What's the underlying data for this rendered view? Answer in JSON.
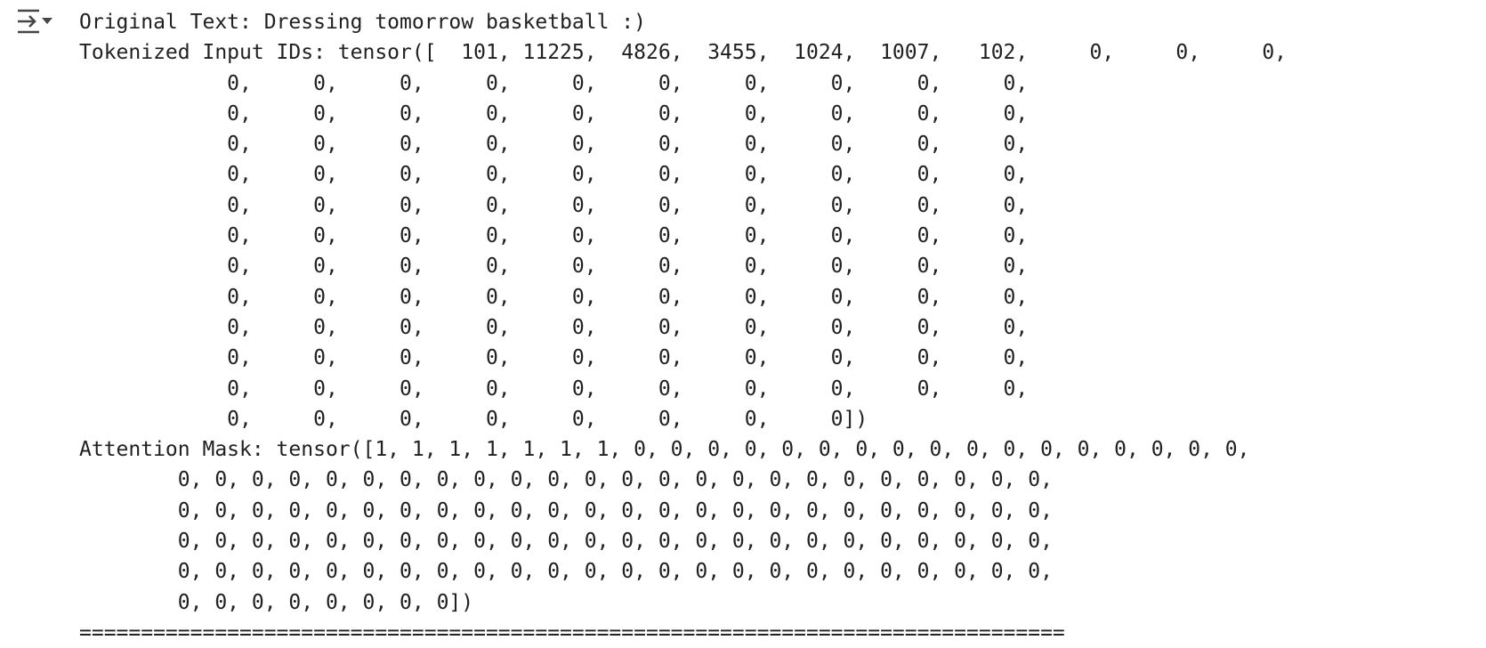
{
  "toolbar": {
    "toggle_icon": "collapse-output-icon"
  },
  "output": {
    "lines": [
      "Original Text: Dressing tomorrow basketball :)",
      "Tokenized Input IDs: tensor([  101, 11225,  4826,  3455,  1024,  1007,   102,     0,     0,     0,",
      "            0,     0,     0,     0,     0,     0,     0,     0,     0,     0,",
      "            0,     0,     0,     0,     0,     0,     0,     0,     0,     0,",
      "            0,     0,     0,     0,     0,     0,     0,     0,     0,     0,",
      "            0,     0,     0,     0,     0,     0,     0,     0,     0,     0,",
      "            0,     0,     0,     0,     0,     0,     0,     0,     0,     0,",
      "            0,     0,     0,     0,     0,     0,     0,     0,     0,     0,",
      "            0,     0,     0,     0,     0,     0,     0,     0,     0,     0,",
      "            0,     0,     0,     0,     0,     0,     0,     0,     0,     0,",
      "            0,     0,     0,     0,     0,     0,     0,     0,     0,     0,",
      "            0,     0,     0,     0,     0,     0,     0,     0,     0,     0,",
      "            0,     0,     0,     0,     0,     0,     0,     0,     0,     0,",
      "            0,     0,     0,     0,     0,     0,     0,     0])",
      "Attention Mask: tensor([1, 1, 1, 1, 1, 1, 1, 0, 0, 0, 0, 0, 0, 0, 0, 0, 0, 0, 0, 0, 0, 0, 0, 0,",
      "        0, 0, 0, 0, 0, 0, 0, 0, 0, 0, 0, 0, 0, 0, 0, 0, 0, 0, 0, 0, 0, 0, 0, 0,",
      "        0, 0, 0, 0, 0, 0, 0, 0, 0, 0, 0, 0, 0, 0, 0, 0, 0, 0, 0, 0, 0, 0, 0, 0,",
      "        0, 0, 0, 0, 0, 0, 0, 0, 0, 0, 0, 0, 0, 0, 0, 0, 0, 0, 0, 0, 0, 0, 0, 0,",
      "        0, 0, 0, 0, 0, 0, 0, 0, 0, 0, 0, 0, 0, 0, 0, 0, 0, 0, 0, 0, 0, 0, 0, 0,",
      "        0, 0, 0, 0, 0, 0, 0, 0])",
      "================================================================================"
    ]
  }
}
